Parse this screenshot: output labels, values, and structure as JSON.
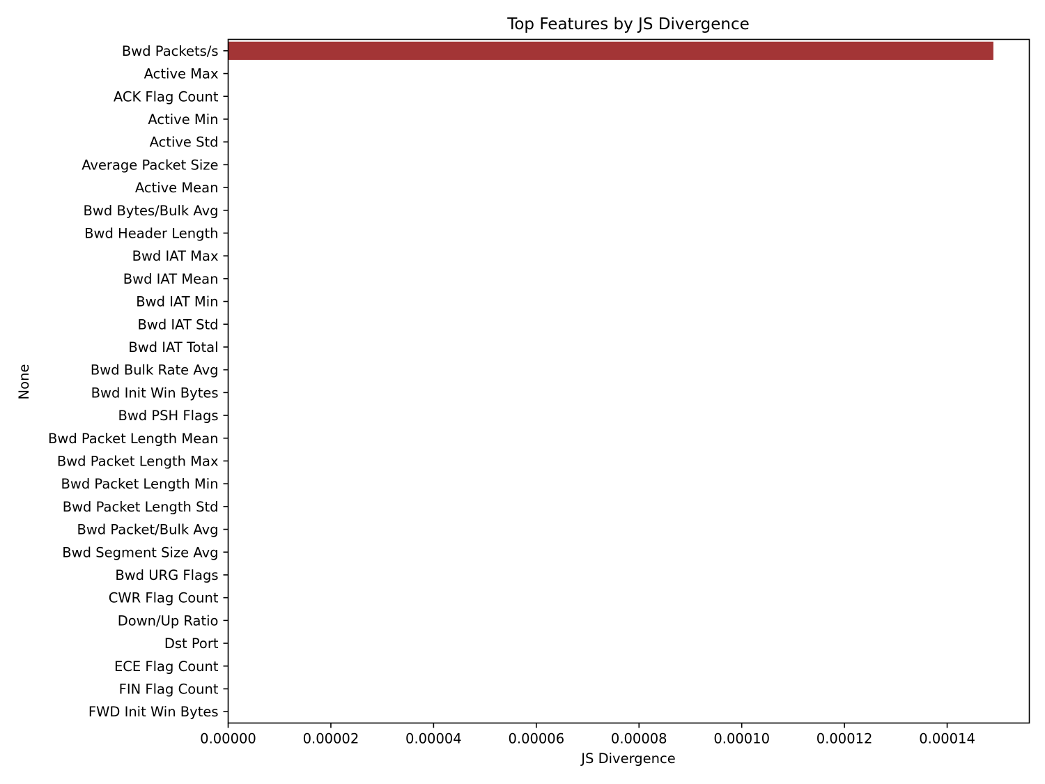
{
  "chart_data": {
    "type": "bar",
    "orientation": "horizontal",
    "title": "Top Features by JS Divergence",
    "xlabel": "JS Divergence",
    "ylabel": "None",
    "xlim": [
      0,
      0.000156
    ],
    "xticks": [
      0,
      2e-05,
      4e-05,
      6e-05,
      8e-05,
      0.0001,
      0.00012,
      0.00014
    ],
    "xtick_labels": [
      "0.00000",
      "0.00002",
      "0.00004",
      "0.00006",
      "0.00008",
      "0.00010",
      "0.00012",
      "0.00014"
    ],
    "categories": [
      "Bwd Packets/s",
      "Active Max",
      "ACK Flag Count",
      "Active Min",
      "Active Std",
      "Average Packet Size",
      "Active Mean",
      "Bwd Bytes/Bulk Avg",
      "Bwd Header Length",
      "Bwd IAT Max",
      "Bwd IAT Mean",
      "Bwd IAT Min",
      "Bwd IAT Std",
      "Bwd IAT Total",
      "Bwd Bulk Rate Avg",
      "Bwd Init Win Bytes",
      "Bwd PSH Flags",
      "Bwd Packet Length Mean",
      "Bwd Packet Length Max",
      "Bwd Packet Length Min",
      "Bwd Packet Length Std",
      "Bwd Packet/Bulk Avg",
      "Bwd Segment Size Avg",
      "Bwd URG Flags",
      "CWR Flag Count",
      "Down/Up Ratio",
      "Dst Port",
      "ECE Flag Count",
      "FIN Flag Count",
      "FWD Init Win Bytes"
    ],
    "values": [
      0.000149,
      0,
      0,
      0,
      0,
      0,
      0,
      0,
      0,
      0,
      0,
      0,
      0,
      0,
      0,
      0,
      0,
      0,
      0,
      0,
      0,
      0,
      0,
      0,
      0,
      0,
      0,
      0,
      0,
      0
    ],
    "bar_color": "#a33536",
    "grid": false,
    "legend": "none"
  }
}
